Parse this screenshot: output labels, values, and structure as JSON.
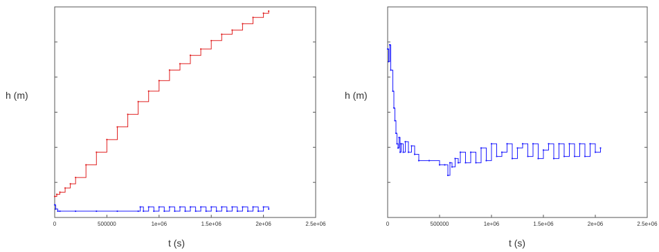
{
  "colors": {
    "red": "#e02020",
    "blue": "#1a1aff",
    "dark_blue": "#101060"
  },
  "chart_data": [
    {
      "type": "line",
      "xlabel": "t (s)",
      "ylabel": "h (m)",
      "xlim": [
        0,
        2500000
      ],
      "ylim": [
        0,
        1
      ],
      "x_ticks": [
        0,
        500000,
        1000000,
        1500000,
        2000000,
        2500000
      ],
      "x_tick_labels": [
        "0",
        "500000",
        "1e+06",
        "1.5e+06",
        "2e+06",
        "2.5e+06"
      ],
      "y_ticks_labeled": false,
      "series": [
        {
          "color": "#e02020",
          "x": [
            0,
            20000,
            50000,
            100000,
            150000,
            200000,
            300000,
            400000,
            500000,
            600000,
            700000,
            800000,
            900000,
            1000000,
            1100000,
            1200000,
            1300000,
            1400000,
            1500000,
            1600000,
            1700000,
            1800000,
            1900000,
            2000000,
            2050000
          ],
          "y": [
            0.1,
            0.11,
            0.12,
            0.14,
            0.16,
            0.19,
            0.25,
            0.31,
            0.37,
            0.43,
            0.49,
            0.55,
            0.6,
            0.65,
            0.7,
            0.73,
            0.77,
            0.8,
            0.84,
            0.87,
            0.89,
            0.92,
            0.95,
            0.97,
            0.98
          ]
        },
        {
          "color": "#1a1aff",
          "x": [
            0,
            10000,
            30000,
            50000,
            200000,
            400000,
            600000,
            800000,
            820000,
            850000,
            900000,
            950000,
            1000000,
            1050000,
            1100000,
            1150000,
            1200000,
            1250000,
            1300000,
            1350000,
            1400000,
            1450000,
            1500000,
            1550000,
            1600000,
            1650000,
            1700000,
            1750000,
            1800000,
            1850000,
            1900000,
            1950000,
            2000000,
            2050000
          ],
          "y": [
            0.06,
            0.04,
            0.03,
            0.03,
            0.03,
            0.03,
            0.03,
            0.03,
            0.05,
            0.03,
            0.05,
            0.03,
            0.05,
            0.03,
            0.05,
            0.03,
            0.05,
            0.03,
            0.05,
            0.03,
            0.05,
            0.03,
            0.05,
            0.03,
            0.05,
            0.03,
            0.05,
            0.03,
            0.05,
            0.03,
            0.05,
            0.03,
            0.05,
            0.04
          ]
        }
      ]
    },
    {
      "type": "line",
      "xlabel": "t (s)",
      "ylabel": "h (m)",
      "xlim": [
        0,
        2500000
      ],
      "ylim": [
        0,
        1
      ],
      "x_ticks": [
        0,
        500000,
        1000000,
        1500000,
        2000000,
        2500000
      ],
      "x_tick_labels": [
        "0",
        "500000",
        "1e+06",
        "1.5e+06",
        "2e+06",
        "2.5e+06"
      ],
      "y_ticks_labeled": false,
      "series": [
        {
          "color": "#1a1aff",
          "x": [
            0,
            10000,
            20000,
            30000,
            50000,
            60000,
            70000,
            80000,
            90000,
            100000,
            110000,
            120000,
            130000,
            150000,
            170000,
            200000,
            230000,
            260000,
            300000,
            400000,
            500000,
            550000,
            580000,
            600000,
            620000,
            650000,
            680000,
            700000,
            750000,
            800000,
            850000,
            900000,
            950000,
            1000000,
            1050000,
            1100000,
            1150000,
            1200000,
            1250000,
            1300000,
            1350000,
            1400000,
            1450000,
            1500000,
            1550000,
            1600000,
            1650000,
            1700000,
            1750000,
            1800000,
            1850000,
            1900000,
            1950000,
            2000000,
            2050000
          ],
          "y": [
            0.8,
            0.74,
            0.82,
            0.7,
            0.6,
            0.52,
            0.46,
            0.4,
            0.35,
            0.33,
            0.38,
            0.31,
            0.35,
            0.31,
            0.36,
            0.31,
            0.34,
            0.3,
            0.27,
            0.27,
            0.25,
            0.25,
            0.2,
            0.26,
            0.24,
            0.28,
            0.26,
            0.31,
            0.26,
            0.31,
            0.26,
            0.33,
            0.27,
            0.35,
            0.29,
            0.31,
            0.35,
            0.28,
            0.33,
            0.35,
            0.29,
            0.35,
            0.28,
            0.32,
            0.35,
            0.28,
            0.35,
            0.29,
            0.35,
            0.29,
            0.35,
            0.29,
            0.35,
            0.31,
            0.33
          ]
        }
      ]
    }
  ]
}
